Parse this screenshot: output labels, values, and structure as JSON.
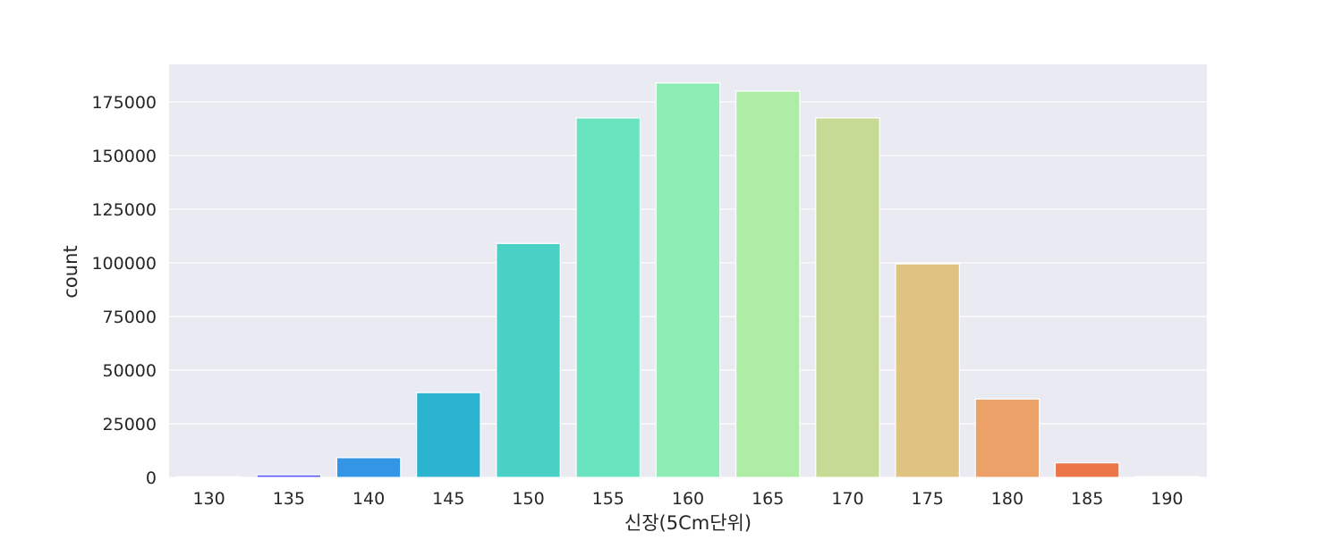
{
  "chart_data": {
    "type": "bar",
    "xlabel": "신장(5Cm단위)",
    "ylabel": "count",
    "categories": [
      "130",
      "135",
      "140",
      "145",
      "150",
      "155",
      "160",
      "165",
      "170",
      "175",
      "180",
      "185",
      "190"
    ],
    "values": [
      300,
      1200,
      9200,
      39500,
      109000,
      167500,
      183800,
      180000,
      167500,
      99500,
      36500,
      6800,
      400
    ],
    "ylim": [
      0,
      183800
    ],
    "yticks": [
      0,
      25000,
      50000,
      75000,
      100000,
      125000,
      150000,
      175000
    ],
    "grid": true,
    "colors": [
      "#7f00ff",
      "#5a5bf6",
      "#3395e5",
      "#2bb3d0",
      "#4bd0c6",
      "#6ae4be",
      "#8dedb4",
      "#afeda6",
      "#c6da93",
      "#dfc380",
      "#eba167",
      "#ec7547",
      "#ff0000"
    ]
  }
}
